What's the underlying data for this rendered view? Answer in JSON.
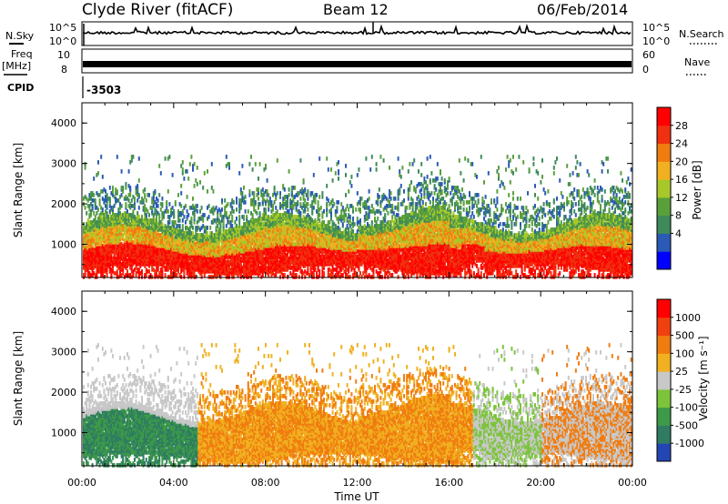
{
  "header": {
    "station": "Clyde River (fitACF)",
    "beam": "Beam 12",
    "date": "06/Feb/2014"
  },
  "labels": {
    "nsky": "N.Sky",
    "nsearch": "N.Search",
    "freq_line1": "Freq",
    "freq_line2": "[MHz]",
    "nave": "Nave",
    "cpid": "CPID",
    "cpid_value": "-3503",
    "xaxis": "Time UT",
    "yaxis": "Slant Range [km]",
    "noise_left_top": "10^5",
    "noise_left_bottom": "10^0",
    "noise_right_top": "10^5",
    "noise_right_bottom": "10^0",
    "freq_left_top": "10",
    "freq_left_bottom": "8",
    "nave_right_top": "60",
    "nave_right_bottom": "0"
  },
  "colors": {
    "power": [
      "#0000ff",
      "#2a5ab5",
      "#3e8a5a",
      "#5aa03a",
      "#a8c82a",
      "#f0b020",
      "#f07c10",
      "#f03010",
      "#ff0000"
    ],
    "velocity": [
      "#2446b4",
      "#2f7c62",
      "#3c9a48",
      "#7cc43c",
      "#c8c8c8",
      "#f0b020",
      "#f07c10",
      "#f04010",
      "#ff0000"
    ]
  },
  "chart_data": [
    {
      "type": "line",
      "title": "",
      "series": [
        {
          "name": "N.Sky"
        },
        {
          "name": "N.Search"
        }
      ],
      "ylim": [
        1,
        100000
      ],
      "log_scale": true
    },
    {
      "type": "line",
      "series": [
        {
          "name": "Freq [MHz]"
        },
        {
          "name": "Nave"
        }
      ],
      "ylim_freq": [
        8,
        10
      ],
      "ylim_nave": [
        0,
        60
      ]
    },
    {
      "type": "heatmap",
      "quantity": "Power",
      "colorbar_label": "Power [dB]",
      "colorbar_ticks": [
        "28",
        "24",
        "20",
        "16",
        "12",
        "8",
        "4"
      ],
      "x_ticks": [
        "00:00",
        "04:00",
        "08:00",
        "12:00",
        "16:00",
        "20:00",
        "00:00"
      ],
      "xlim_hours": [
        0,
        24
      ],
      "y_ticks": [
        "1000",
        "2000",
        "3000",
        "4000"
      ],
      "ylim": [
        180,
        4500
      ],
      "xlabel": "",
      "ylabel": "Slant Range [km]"
    },
    {
      "type": "heatmap",
      "quantity": "Velocity",
      "colorbar_label": "Velocity [m s⁻¹]",
      "colorbar_ticks": [
        "1000",
        "500",
        "100",
        "25",
        "-25",
        "-100",
        "-500",
        "-1000"
      ],
      "x_ticks": [
        "00:00",
        "04:00",
        "08:00",
        "12:00",
        "16:00",
        "20:00",
        "00:00"
      ],
      "xlim_hours": [
        0,
        24
      ],
      "y_ticks": [
        "1000",
        "2000",
        "3000",
        "4000"
      ],
      "ylim": [
        180,
        4500
      ],
      "xlabel": "Time UT",
      "ylabel": "Slant Range [km]"
    }
  ]
}
